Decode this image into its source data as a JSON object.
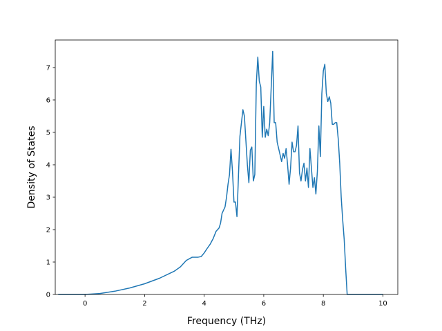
{
  "chart_data": {
    "type": "line",
    "title": "",
    "xlabel": "Frequency (THz)",
    "ylabel": "Density of States",
    "xlim": [
      -1.0,
      10.5
    ],
    "ylim": [
      0,
      7.85
    ],
    "xticks": [
      0,
      2,
      4,
      6,
      8,
      10
    ],
    "yticks": [
      0,
      1,
      2,
      3,
      4,
      5,
      6,
      7
    ],
    "grid": false,
    "line_color": "#1f77b4",
    "series": [
      {
        "x": [
          -0.9,
          0.0,
          0.5,
          1.0,
          1.5,
          2.0,
          2.5,
          3.0,
          3.2,
          3.4,
          3.6,
          3.7,
          3.8,
          3.9,
          4.0,
          4.1,
          4.2,
          4.3,
          4.4,
          4.5,
          4.55,
          4.6,
          4.7,
          4.75,
          4.8,
          4.85,
          4.9,
          4.95,
          5.0,
          5.05,
          5.1,
          5.2,
          5.3,
          5.35,
          5.45,
          5.5,
          5.55,
          5.6,
          5.65,
          5.7,
          5.75,
          5.8,
          5.85,
          5.9,
          5.95,
          6.0,
          6.05,
          6.1,
          6.15,
          6.2,
          6.25,
          6.3,
          6.35,
          6.4,
          6.45,
          6.5,
          6.55,
          6.6,
          6.65,
          6.7,
          6.75,
          6.8,
          6.85,
          6.9,
          6.95,
          7.0,
          7.05,
          7.1,
          7.15,
          7.2,
          7.25,
          7.3,
          7.35,
          7.4,
          7.45,
          7.5,
          7.55,
          7.6,
          7.65,
          7.7,
          7.75,
          7.8,
          7.85,
          7.9,
          7.95,
          8.0,
          8.05,
          8.1,
          8.15,
          8.2,
          8.25,
          8.3,
          8.35,
          8.4,
          8.45,
          8.5,
          8.55,
          8.6,
          8.65,
          8.7,
          8.75,
          8.8,
          8.85,
          8.9,
          8.95,
          9.0,
          9.05,
          9.1,
          9.15,
          9.3,
          9.6,
          10.0
        ],
        "y": [
          0.0,
          0.0,
          0.03,
          0.1,
          0.2,
          0.33,
          0.5,
          0.72,
          0.85,
          1.05,
          1.15,
          1.15,
          1.15,
          1.17,
          1.28,
          1.42,
          1.55,
          1.72,
          1.95,
          2.05,
          2.2,
          2.5,
          2.7,
          3.0,
          3.4,
          3.7,
          4.48,
          3.8,
          2.85,
          2.85,
          2.4,
          4.88,
          5.7,
          5.5,
          4.0,
          3.45,
          4.45,
          4.55,
          3.5,
          3.7,
          6.5,
          7.32,
          6.58,
          6.4,
          4.85,
          5.8,
          4.85,
          5.1,
          4.9,
          5.3,
          6.4,
          7.5,
          5.3,
          5.3,
          4.7,
          4.5,
          4.3,
          4.1,
          4.35,
          4.2,
          4.5,
          4.0,
          3.4,
          3.9,
          4.7,
          4.4,
          4.4,
          4.6,
          5.2,
          3.75,
          3.5,
          3.85,
          4.05,
          3.5,
          3.9,
          3.3,
          4.5,
          3.9,
          3.3,
          3.6,
          3.1,
          3.8,
          5.2,
          4.25,
          6.2,
          6.9,
          7.1,
          6.2,
          5.95,
          6.1,
          5.9,
          5.25,
          5.25,
          5.3,
          5.3,
          4.8,
          4.05,
          3.0,
          2.3,
          1.7,
          0.8,
          0.0,
          0.0,
          0.0,
          0.0,
          0.0,
          0.0,
          0.0,
          0.0,
          0.0,
          0.0,
          0.0
        ]
      }
    ]
  }
}
